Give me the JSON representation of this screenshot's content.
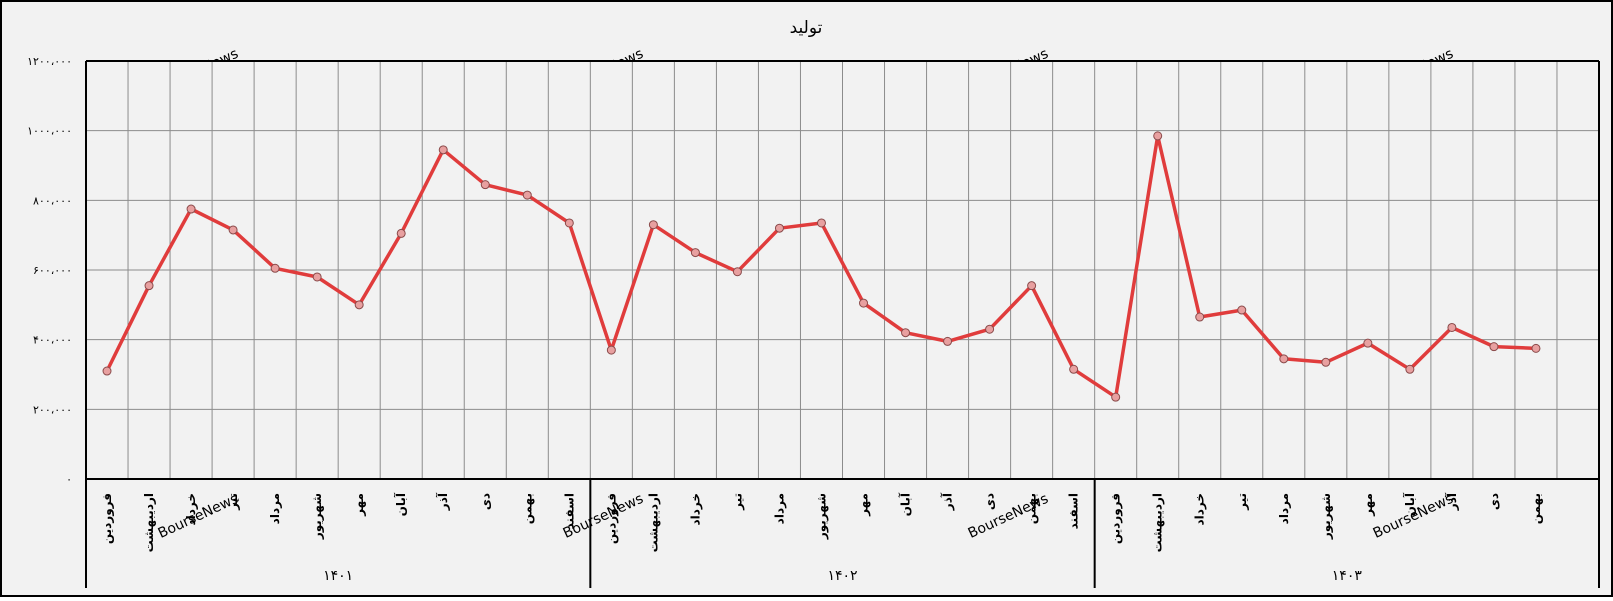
{
  "chart_data": {
    "type": "line",
    "title": "تولید",
    "watermark": "BourseNews",
    "ylim": [
      0,
      1200000
    ],
    "y_ticks": [
      {
        "value": 0,
        "label": "۰"
      },
      {
        "value": 200000,
        "label": "۲۰۰،۰۰۰"
      },
      {
        "value": 400000,
        "label": "۴۰۰،۰۰۰"
      },
      {
        "value": 600000,
        "label": "۶۰۰،۰۰۰"
      },
      {
        "value": 800000,
        "label": "۸۰۰،۰۰۰"
      },
      {
        "value": 1000000,
        "label": "۱۰۰۰،۰۰۰"
      },
      {
        "value": 1200000,
        "label": "۱۲۰۰،۰۰۰"
      }
    ],
    "groups": [
      {
        "label": "۱۴۰۱",
        "months": [
          "فروردین",
          "اردیبهشت",
          "خرداد",
          "تیر",
          "مرداد",
          "شهریور",
          "مهر",
          "آبان",
          "آذر",
          "دی",
          "بهمن",
          "اسفند"
        ],
        "values": [
          310000,
          555000,
          775000,
          715000,
          605000,
          580000,
          500000,
          705000,
          945000,
          845000,
          815000,
          735000
        ]
      },
      {
        "label": "۱۴۰۲",
        "months": [
          "فروردین",
          "اردیبهشت",
          "خرداد",
          "تیر",
          "مرداد",
          "شهریور",
          "مهر",
          "آبان",
          "آذر",
          "دی",
          "بهمن",
          "اسفند"
        ],
        "values": [
          370000,
          730000,
          650000,
          595000,
          720000,
          735000,
          505000,
          420000,
          395000,
          430000,
          555000,
          315000
        ]
      },
      {
        "label": "۱۴۰۳",
        "months": [
          "فروردین",
          "اردیبهشت",
          "خرداد",
          "تیر",
          "مرداد",
          "شهریور",
          "مهر",
          "آبان",
          "آذر",
          "دی",
          "بهمن"
        ],
        "values": [
          235000,
          985000,
          465000,
          485000,
          345000,
          335000,
          390000,
          315000,
          435000,
          380000,
          375000
        ]
      }
    ],
    "series_color": "#e03c3c",
    "marker_color": "#e8a0a0",
    "grid": true
  }
}
